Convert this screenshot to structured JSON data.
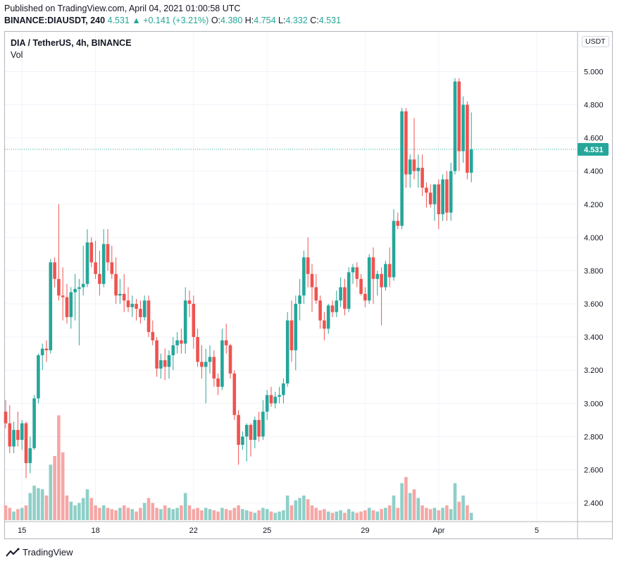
{
  "header": {
    "publish_text": "Published on TradingView.com, April 04, 2021 01:00:58 UTC",
    "symbol": "BINANCE:DIAUSDT, 240",
    "last": "4.531",
    "change_arrow_icon": "triangle-up-icon",
    "change": "+0.141 (+3.21%)",
    "o_label": "O:",
    "o_value": "4.380",
    "h_label": "H:",
    "h_value": "4.754",
    "l_label": "L:",
    "l_value": "4.332",
    "c_label": "C:",
    "c_value": "4.531"
  },
  "legend": {
    "title": "DIA / TetherUS, 4h, BINANCE",
    "vol_label": "Vol"
  },
  "axis": {
    "currency": "USDT",
    "last_price_label": "4.531"
  },
  "footer": {
    "brand": "TradingView",
    "logo_icon": "tradingview-logo-icon"
  },
  "colors": {
    "up": "#26a69a",
    "down": "#ef5350",
    "up_volume": "#8fcfc8",
    "down_volume": "#f5a7a5",
    "grid": "#f0f3fa"
  },
  "chart_data": {
    "type": "candlestick",
    "ylim": [
      2.3,
      5.1
    ],
    "y_ticks": [
      "5.000",
      "4.800",
      "4.600",
      "4.400",
      "4.200",
      "4.000",
      "3.800",
      "3.600",
      "3.400",
      "3.200",
      "3.000",
      "2.800",
      "2.600",
      "2.400"
    ],
    "y_tick_values": [
      5.0,
      4.8,
      4.6,
      4.4,
      4.2,
      4.0,
      3.8,
      3.6,
      3.4,
      3.2,
      3.0,
      2.8,
      2.6,
      2.4
    ],
    "x_ticks": [
      {
        "label": "15",
        "index": 4
      },
      {
        "label": "18",
        "index": 22
      },
      {
        "label": "22",
        "index": 46
      },
      {
        "label": "25",
        "index": 64
      },
      {
        "label": "29",
        "index": 88
      },
      {
        "label": "Apr",
        "index": 106
      },
      {
        "label": "5",
        "index": 130
      }
    ],
    "last_price": 4.531,
    "candles": [
      [
        2.95,
        3.02,
        2.85,
        2.88
      ],
      [
        2.88,
        2.99,
        2.7,
        2.74
      ],
      [
        2.74,
        2.89,
        2.7,
        2.84
      ],
      [
        2.84,
        2.95,
        2.74,
        2.78
      ],
      [
        2.78,
        2.9,
        2.72,
        2.88
      ],
      [
        2.88,
        2.89,
        2.55,
        2.64
      ],
      [
        2.64,
        2.8,
        2.58,
        2.73
      ],
      [
        2.73,
        3.05,
        2.72,
        3.03
      ],
      [
        3.03,
        3.3,
        3.0,
        3.29
      ],
      [
        3.29,
        3.36,
        3.2,
        3.33
      ],
      [
        3.33,
        3.38,
        3.25,
        3.32
      ],
      [
        3.32,
        3.87,
        3.3,
        3.85
      ],
      [
        3.85,
        3.88,
        3.7,
        3.75
      ],
      [
        3.75,
        4.2,
        3.62,
        3.65
      ],
      [
        3.65,
        3.82,
        3.5,
        3.64
      ],
      [
        3.64,
        3.72,
        3.48,
        3.52
      ],
      [
        3.52,
        3.7,
        3.45,
        3.67
      ],
      [
        3.67,
        3.78,
        3.5,
        3.69
      ],
      [
        3.69,
        3.75,
        3.35,
        3.7
      ],
      [
        3.7,
        3.95,
        3.65,
        3.72
      ],
      [
        3.72,
        4.05,
        3.7,
        3.97
      ],
      [
        3.97,
        4.0,
        3.82,
        3.85
      ],
      [
        3.85,
        3.98,
        3.75,
        3.78
      ],
      [
        3.78,
        3.92,
        3.65,
        3.72
      ],
      [
        3.72,
        4.05,
        3.7,
        3.96
      ],
      [
        3.96,
        4.05,
        3.8,
        3.85
      ],
      [
        3.85,
        3.95,
        3.75,
        3.78
      ],
      [
        3.78,
        3.88,
        3.6,
        3.65
      ],
      [
        3.65,
        3.75,
        3.6,
        3.66
      ],
      [
        3.66,
        3.78,
        3.55,
        3.62
      ],
      [
        3.62,
        3.7,
        3.55,
        3.58
      ],
      [
        3.58,
        3.65,
        3.52,
        3.6
      ],
      [
        3.6,
        3.63,
        3.5,
        3.57
      ],
      [
        3.57,
        3.62,
        3.48,
        3.52
      ],
      [
        3.52,
        3.65,
        3.5,
        3.62
      ],
      [
        3.62,
        3.65,
        3.4,
        3.43
      ],
      [
        3.43,
        3.5,
        3.35,
        3.38
      ],
      [
        3.38,
        3.4,
        3.16,
        3.21
      ],
      [
        3.21,
        3.3,
        3.15,
        3.26
      ],
      [
        3.26,
        3.33,
        3.14,
        3.22
      ],
      [
        3.22,
        3.32,
        3.15,
        3.29
      ],
      [
        3.29,
        3.4,
        3.2,
        3.35
      ],
      [
        3.35,
        3.43,
        3.3,
        3.38
      ],
      [
        3.38,
        3.45,
        3.3,
        3.36
      ],
      [
        3.36,
        3.7,
        3.3,
        3.62
      ],
      [
        3.62,
        3.68,
        3.52,
        3.6
      ],
      [
        3.6,
        3.65,
        3.33,
        3.4
      ],
      [
        3.4,
        3.45,
        3.22,
        3.25
      ],
      [
        3.25,
        3.35,
        3.15,
        3.22
      ],
      [
        3.22,
        3.33,
        3.0,
        3.25
      ],
      [
        3.25,
        3.35,
        3.18,
        3.28
      ],
      [
        3.28,
        3.32,
        3.1,
        3.15
      ],
      [
        3.15,
        3.18,
        3.05,
        3.1
      ],
      [
        3.1,
        3.45,
        3.08,
        3.38
      ],
      [
        3.38,
        3.48,
        3.3,
        3.35
      ],
      [
        3.35,
        3.36,
        3.15,
        3.18
      ],
      [
        3.18,
        3.2,
        2.9,
        2.93
      ],
      [
        2.93,
        2.96,
        2.63,
        2.75
      ],
      [
        2.75,
        2.83,
        2.72,
        2.8
      ],
      [
        2.8,
        2.88,
        2.65,
        2.87
      ],
      [
        2.87,
        2.88,
        2.68,
        2.78
      ],
      [
        2.78,
        2.92,
        2.73,
        2.9
      ],
      [
        2.9,
        2.95,
        2.77,
        2.8
      ],
      [
        2.8,
        3.02,
        2.78,
        2.95
      ],
      [
        2.95,
        3.08,
        2.9,
        3.05
      ],
      [
        3.05,
        3.1,
        2.98,
        3.0
      ],
      [
        3.0,
        3.07,
        2.97,
        3.04
      ],
      [
        3.04,
        3.1,
        3.0,
        3.05
      ],
      [
        3.05,
        3.15,
        3.0,
        3.12
      ],
      [
        3.12,
        3.55,
        3.1,
        3.5
      ],
      [
        3.5,
        3.62,
        3.25,
        3.32
      ],
      [
        3.32,
        3.65,
        3.2,
        3.6
      ],
      [
        3.6,
        3.75,
        3.5,
        3.65
      ],
      [
        3.65,
        3.92,
        3.6,
        3.88
      ],
      [
        3.88,
        4.0,
        3.7,
        3.78
      ],
      [
        3.78,
        3.84,
        3.55,
        3.7
      ],
      [
        3.7,
        3.78,
        3.6,
        3.62
      ],
      [
        3.62,
        3.65,
        3.45,
        3.5
      ],
      [
        3.5,
        3.55,
        3.38,
        3.45
      ],
      [
        3.45,
        3.6,
        3.42,
        3.59
      ],
      [
        3.59,
        3.62,
        3.52,
        3.55
      ],
      [
        3.55,
        3.68,
        3.52,
        3.62
      ],
      [
        3.62,
        3.76,
        3.58,
        3.7
      ],
      [
        3.7,
        3.75,
        3.53,
        3.57
      ],
      [
        3.57,
        3.82,
        3.55,
        3.79
      ],
      [
        3.79,
        3.84,
        3.72,
        3.82
      ],
      [
        3.82,
        3.85,
        3.7,
        3.75
      ],
      [
        3.75,
        3.78,
        3.65,
        3.66
      ],
      [
        3.66,
        3.7,
        3.58,
        3.62
      ],
      [
        3.62,
        3.9,
        3.6,
        3.88
      ],
      [
        3.88,
        3.94,
        3.6,
        3.75
      ],
      [
        3.75,
        3.8,
        3.65,
        3.78
      ],
      [
        3.78,
        3.82,
        3.47,
        3.7
      ],
      [
        3.7,
        3.86,
        3.68,
        3.84
      ],
      [
        3.84,
        3.94,
        3.7,
        3.76
      ],
      [
        3.76,
        4.17,
        3.74,
        4.1
      ],
      [
        4.1,
        4.15,
        4.05,
        4.07
      ],
      [
        4.07,
        4.78,
        4.05,
        4.76
      ],
      [
        4.76,
        4.78,
        4.3,
        4.38
      ],
      [
        4.38,
        4.5,
        4.3,
        4.47
      ],
      [
        4.47,
        4.72,
        4.35,
        4.4
      ],
      [
        4.4,
        4.5,
        4.3,
        4.42
      ],
      [
        4.42,
        4.5,
        4.25,
        4.3
      ],
      [
        4.3,
        4.33,
        4.18,
        4.27
      ],
      [
        4.27,
        4.32,
        4.18,
        4.2
      ],
      [
        4.2,
        4.3,
        4.1,
        4.32
      ],
      [
        4.32,
        4.35,
        4.05,
        4.14
      ],
      [
        4.14,
        4.38,
        4.1,
        4.35
      ],
      [
        4.35,
        4.4,
        4.1,
        4.15
      ],
      [
        4.15,
        4.45,
        4.1,
        4.4
      ],
      [
        4.4,
        4.96,
        4.38,
        4.94
      ],
      [
        4.94,
        4.96,
        4.4,
        4.52
      ],
      [
        4.52,
        4.85,
        4.45,
        4.8
      ],
      [
        4.8,
        4.82,
        4.35,
        4.39
      ],
      [
        4.39,
        4.754,
        4.332,
        4.531
      ]
    ],
    "volume_ylim": [
      0,
      1
    ],
    "volume": [
      0.12,
      0.1,
      0.07,
      0.09,
      0.1,
      0.12,
      0.22,
      0.28,
      0.26,
      0.25,
      0.2,
      0.45,
      0.52,
      0.85,
      0.55,
      0.2,
      0.15,
      0.12,
      0.14,
      0.18,
      0.25,
      0.18,
      0.12,
      0.1,
      0.12,
      0.1,
      0.09,
      0.08,
      0.1,
      0.12,
      0.1,
      0.09,
      0.07,
      0.1,
      0.14,
      0.18,
      0.14,
      0.1,
      0.09,
      0.12,
      0.1,
      0.09,
      0.1,
      0.12,
      0.22,
      0.12,
      0.09,
      0.1,
      0.08,
      0.1,
      0.09,
      0.08,
      0.07,
      0.1,
      0.09,
      0.08,
      0.1,
      0.12,
      0.09,
      0.08,
      0.07,
      0.06,
      0.08,
      0.1,
      0.09,
      0.07,
      0.06,
      0.07,
      0.08,
      0.2,
      0.12,
      0.16,
      0.18,
      0.2,
      0.17,
      0.12,
      0.1,
      0.08,
      0.09,
      0.07,
      0.06,
      0.07,
      0.08,
      0.06,
      0.09,
      0.07,
      0.06,
      0.07,
      0.08,
      0.1,
      0.08,
      0.07,
      0.09,
      0.1,
      0.12,
      0.2,
      0.1,
      0.3,
      0.35,
      0.22,
      0.25,
      0.18,
      0.12,
      0.1,
      0.09,
      0.1,
      0.08,
      0.1,
      0.12,
      0.09,
      0.3,
      0.15,
      0.2,
      0.12,
      0.06
    ]
  }
}
